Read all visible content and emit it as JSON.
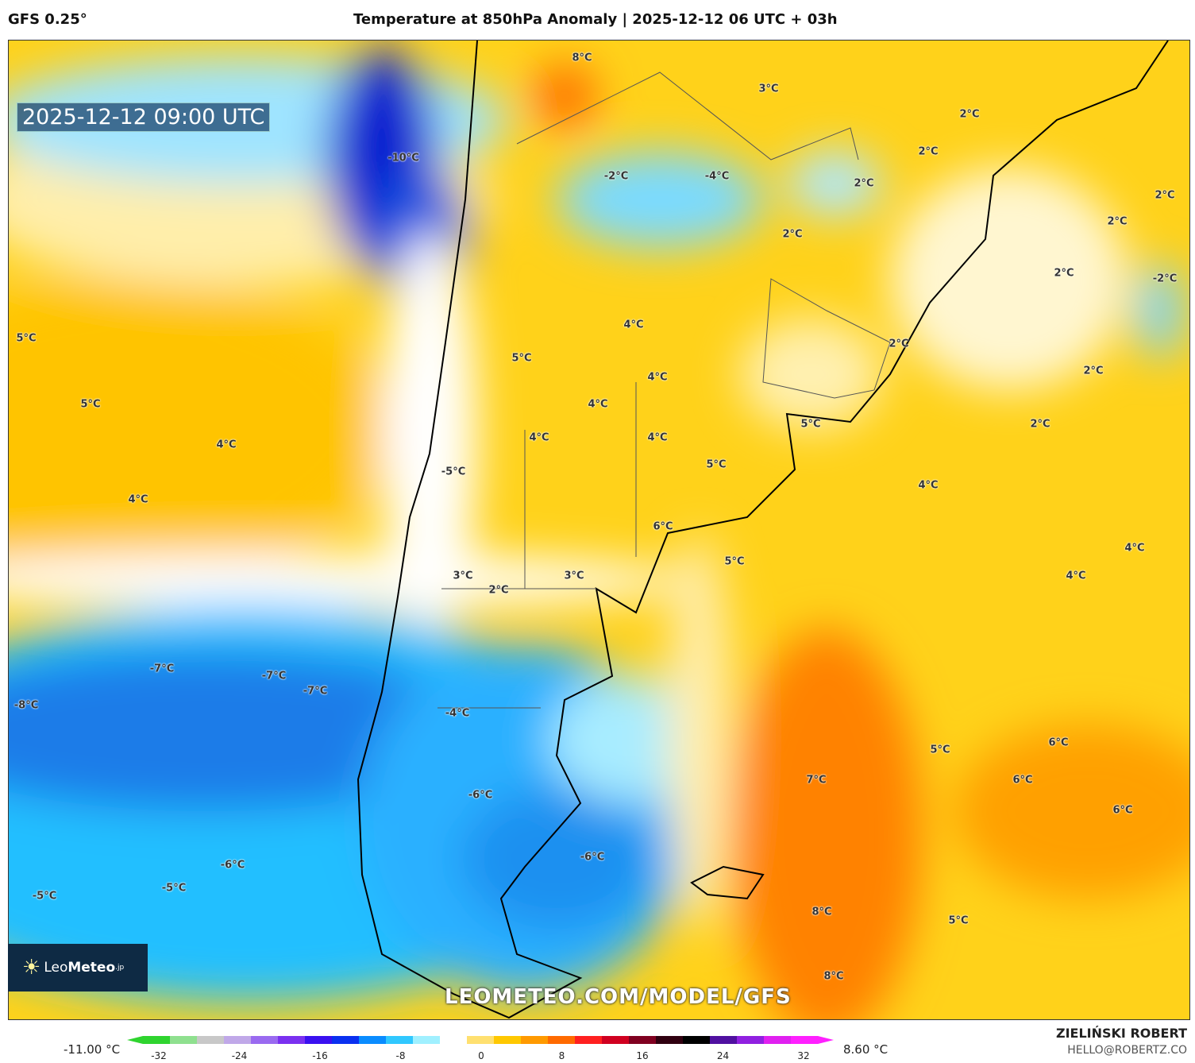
{
  "header": {
    "model": "GFS 0.25°",
    "title": "Temperature at 850hPa Anomaly | 2025-12-12 06 UTC + 03h"
  },
  "map": {
    "valid_time": "2025-12-12 09:00 UTC",
    "watermark": "LEOMETEO.COM/MODEL/GFS",
    "contour_labels": [
      "8°C",
      "3°C",
      "2°C",
      "2°C",
      "-10°C",
      "-2°C",
      "-4°C",
      "2°C",
      "2°C",
      "2°C",
      "2°C",
      "2°C",
      "-2°C",
      "4°C",
      "5°C",
      "2°C",
      "5°C",
      "2°C",
      "4°C",
      "5°C",
      "4°C",
      "5°C",
      "2°C",
      "4°C",
      "4°C",
      "4°C",
      "5°C",
      "-5°C",
      "4°C",
      "4°C",
      "6°C",
      "4°C",
      "5°C",
      "3°C",
      "3°C",
      "4°C",
      "2°C",
      "-7°C",
      "-7°C",
      "-7°C",
      "-8°C",
      "-4°C",
      "6°C",
      "5°C",
      "7°C",
      "6°C",
      "-6°C",
      "6°C",
      "-6°C",
      "-6°C",
      "-5°C",
      "-5°C",
      "8°C",
      "5°C",
      "8°C"
    ]
  },
  "logo": {
    "text_light": "Leo",
    "text_bold": "Meteo",
    "suffix": ".jp"
  },
  "colorbar": {
    "min_label": "-11.00 °C",
    "max_label": "8.60 °C",
    "ticks": [
      "-32",
      "-24",
      "-16",
      "-8",
      "0",
      "8",
      "16",
      "24",
      "32"
    ],
    "colors": [
      "#2fd42f",
      "#8fe08f",
      "#c8c8c8",
      "#c0a8e8",
      "#9a6af0",
      "#7a30f0",
      "#3a10f0",
      "#0a30f0",
      "#0a8cff",
      "#30c8ff",
      "#a0f0ff",
      "#ffffff",
      "#ffe070",
      "#ffc800",
      "#ff9a00",
      "#ff6a00",
      "#ff2020",
      "#d00020",
      "#800020",
      "#300010",
      "#000000",
      "#5010a0",
      "#9020e0",
      "#e020f0",
      "#ff20ff"
    ]
  },
  "author": {
    "name": "ZIELIŃSKI ROBERT",
    "email": "HELLO@ROBERTZ.CO"
  }
}
